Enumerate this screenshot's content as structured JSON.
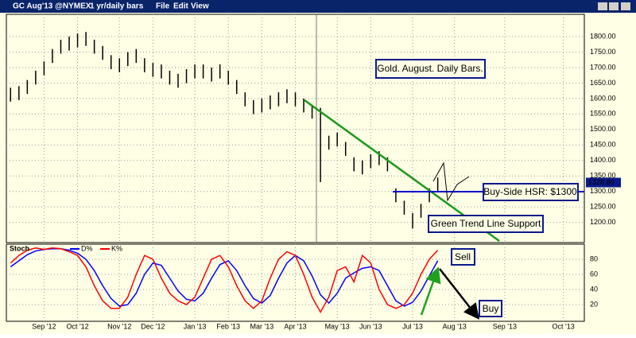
{
  "window": {
    "symbol": "GC Aug'13 @NYMEX",
    "interval": "1 yr/daily bars",
    "menu": [
      "File",
      "Edit",
      "View"
    ]
  },
  "chart_data": [
    {
      "type": "hilo",
      "categories": [
        null,
        null,
        null,
        null,
        "Sep '12",
        null,
        null,
        null,
        "Oct '12",
        null,
        null,
        null,
        null,
        "Nov '12",
        null,
        null,
        null,
        "Dec '12",
        null,
        null,
        null,
        null,
        "Jan '13",
        null,
        null,
        null,
        "Feb '13",
        null,
        null,
        null,
        "Mar '13",
        null,
        null,
        null,
        "Apr '13",
        null,
        null,
        null,
        null,
        "May '13",
        null,
        null,
        null,
        "Jun '13",
        null,
        null,
        null,
        null,
        "Jul '13",
        null,
        null,
        null,
        null,
        "Aug '13",
        null,
        null,
        null,
        null,
        null,
        "Sep '13",
        null,
        null,
        null,
        null,
        null,
        null,
        "Oct '13",
        null,
        null
      ],
      "series": [
        {
          "name": "High",
          "color": "#000000",
          "values": [
            1635,
            1640,
            1660,
            1690,
            1720,
            1760,
            1790,
            1800,
            1810,
            1815,
            1790,
            1770,
            1740,
            1730,
            1750,
            1760,
            1730,
            1715,
            1710,
            1690,
            1680,
            1695,
            1710,
            1710,
            1700,
            1710,
            1690,
            1660,
            1620,
            1595,
            1600,
            1610,
            1620,
            1630,
            1620,
            1600,
            1580,
            1570,
            1480,
            1490,
            1460,
            1410,
            1400,
            1420,
            1430,
            1410,
            1310,
            1270,
            1230,
            1260,
            1310,
            1345,
            null,
            null,
            null,
            null,
            null,
            null,
            null,
            null,
            null,
            null,
            null,
            null,
            null,
            null,
            null,
            null,
            null
          ]
        },
        {
          "name": "Low",
          "color": "#000000",
          "values": [
            1590,
            1595,
            1615,
            1645,
            1675,
            1715,
            1745,
            1755,
            1765,
            1770,
            1745,
            1725,
            1695,
            1685,
            1705,
            1715,
            1685,
            1670,
            1665,
            1645,
            1635,
            1650,
            1665,
            1665,
            1655,
            1665,
            1645,
            1615,
            1575,
            1550,
            1555,
            1565,
            1575,
            1585,
            1575,
            1555,
            1535,
            1330,
            1435,
            1445,
            1415,
            1365,
            1355,
            1375,
            1385,
            1365,
            1265,
            1225,
            1180,
            1215,
            1265,
            1300,
            null,
            null,
            null,
            null,
            null,
            null,
            null,
            null,
            null,
            null,
            null,
            null,
            null,
            null,
            null,
            null,
            null
          ]
        }
      ],
      "ylim": [
        1140,
        1890
      ],
      "yticks": [
        {
          "value": 1200,
          "label": "1200.00"
        },
        {
          "value": 1250,
          "label": "1250.00"
        },
        {
          "value": 1300,
          "label": "1300.00"
        },
        {
          "value": 1350,
          "label": "1350.00"
        },
        {
          "value": 1400,
          "label": "1400.00"
        },
        {
          "value": 1450,
          "label": "1450.00"
        },
        {
          "value": 1500,
          "label": "1500.00"
        },
        {
          "value": 1550,
          "label": "1550.00"
        },
        {
          "value": 1600,
          "label": "1600.00"
        },
        {
          "value": 1650,
          "label": "1650.00"
        },
        {
          "value": 1700,
          "label": "1700.00"
        },
        {
          "value": 1750,
          "label": "1750.00"
        },
        {
          "value": 1800,
          "label": "1800.00"
        }
      ],
      "last_price": {
        "value": 1328.8,
        "label": "1328.80"
      },
      "grid": true,
      "annotations": [
        "Gold. August. Daily Bars.",
        "Buy-Side HSR: $1300",
        "Green Trend Line Support"
      ]
    },
    {
      "type": "line",
      "title": "Stoch",
      "series": [
        {
          "name": "D%",
          "color": "#0000ff",
          "values": [
            70,
            78,
            86,
            91,
            93,
            94,
            94,
            92,
            88,
            80,
            65,
            45,
            28,
            18,
            20,
            35,
            60,
            75,
            72,
            55,
            38,
            27,
            25,
            35,
            55,
            73,
            78,
            65,
            45,
            28,
            22,
            32,
            55,
            75,
            85,
            78,
            58,
            33,
            22,
            35,
            55,
            62,
            68,
            70,
            65,
            45,
            25,
            18,
            23,
            38,
            58,
            78,
            null,
            null,
            null,
            null,
            null,
            null,
            null,
            null,
            null,
            null,
            null,
            null,
            null,
            null,
            null,
            null,
            null
          ]
        },
        {
          "name": "K%",
          "color": "#ff0000",
          "values": [
            75,
            85,
            92,
            95,
            93,
            95,
            94,
            90,
            85,
            70,
            45,
            25,
            15,
            15,
            30,
            60,
            85,
            80,
            55,
            35,
            25,
            20,
            30,
            55,
            80,
            85,
            70,
            45,
            25,
            15,
            25,
            55,
            80,
            90,
            85,
            60,
            30,
            10,
            30,
            65,
            70,
            50,
            85,
            75,
            40,
            20,
            15,
            20,
            35,
            60,
            80,
            92,
            null,
            null,
            null,
            null,
            null,
            null,
            null,
            null,
            null,
            null,
            null,
            null,
            null,
            null,
            null,
            null,
            null
          ]
        }
      ],
      "ylim": [
        0,
        100
      ],
      "yticks": [
        20,
        40,
        60,
        80
      ],
      "grid": true,
      "annotations": [
        "Sell",
        "Buy"
      ]
    }
  ]
}
